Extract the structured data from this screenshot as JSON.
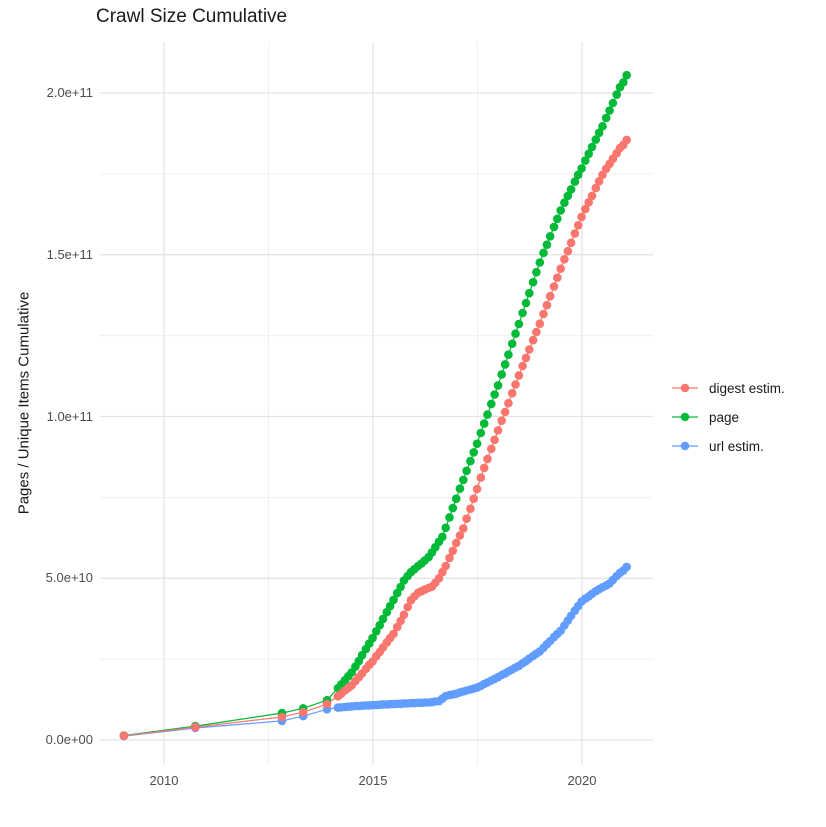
{
  "title": "Crawl Size Cumulative",
  "y_axis": {
    "title": "Pages / Unique Items Cumulative"
  },
  "x_axis": {
    "title": ""
  },
  "legend": {
    "position": "right",
    "items": [
      {
        "label": "digest estim.",
        "color": "#F8766D"
      },
      {
        "label": "page",
        "color": "#00BA38"
      },
      {
        "label": "url estim.",
        "color": "#619CFF"
      }
    ]
  },
  "colors": {
    "digest": "#F8766D",
    "page": "#00BA38",
    "url": "#619CFF",
    "grid_major": "#E3E3E3",
    "grid_minor": "#F0F0F0",
    "tick_text": "#4d4d4d",
    "title_text": "#1a1a1a",
    "background": "#ffffff"
  },
  "chart_data": {
    "type": "line",
    "marker": "point",
    "title": "Crawl Size Cumulative",
    "xlabel": "",
    "ylabel": "Pages / Unique Items Cumulative",
    "grid": true,
    "legend_position": "right",
    "value_unit": "1e10 (pages / unique items)",
    "xlim": [
      2008.45,
      2021.7
    ],
    "ylim_e10": [
      -0.85,
      21.6
    ],
    "x_ticks": {
      "values": [
        2010,
        2015,
        2020
      ],
      "labels": [
        "2010",
        "2015",
        "2020"
      ]
    },
    "x_minor_ticks": [
      2012.5,
      2017.5
    ],
    "y_ticks": {
      "values_e10": [
        0,
        5,
        10,
        15,
        20
      ],
      "labels": [
        "0.0e+00",
        "5.0e+10",
        "1.0e+11",
        "1.5e+11",
        "2.0e+11"
      ]
    },
    "y_minor_ticks_e10": [
      2.5,
      7.5,
      12.5,
      17.5
    ],
    "x": [
      2009.04,
      2010.75,
      2012.82,
      2013.33,
      2013.9,
      2014.16,
      2014.24,
      2014.33,
      2014.41,
      2014.49,
      2014.58,
      2014.66,
      2014.74,
      2014.83,
      2014.91,
      2014.99,
      2015.08,
      2015.16,
      2015.24,
      2015.33,
      2015.41,
      2015.49,
      2015.58,
      2015.66,
      2015.74,
      2015.83,
      2015.91,
      2015.99,
      2016.08,
      2016.16,
      2016.24,
      2016.33,
      2016.41,
      2016.49,
      2016.58,
      2016.66,
      2016.74,
      2016.83,
      2016.91,
      2016.99,
      2017.08,
      2017.16,
      2017.24,
      2017.33,
      2017.41,
      2017.49,
      2017.58,
      2017.66,
      2017.74,
      2017.83,
      2017.91,
      2017.99,
      2018.08,
      2018.16,
      2018.24,
      2018.33,
      2018.41,
      2018.49,
      2018.58,
      2018.66,
      2018.74,
      2018.83,
      2018.91,
      2018.99,
      2019.08,
      2019.16,
      2019.24,
      2019.33,
      2019.41,
      2019.49,
      2019.58,
      2019.66,
      2019.74,
      2019.83,
      2019.91,
      2019.99,
      2020.08,
      2020.16,
      2020.24,
      2020.33,
      2020.41,
      2020.49,
      2020.58,
      2020.66,
      2020.74,
      2020.83,
      2020.91,
      2020.99,
      2021.07
    ],
    "series": [
      {
        "name": "url estim.",
        "color": "#619CFF",
        "values_e10": [
          0.12,
          0.37,
          0.59,
          0.74,
          0.95,
          1.0,
          1.01,
          1.02,
          1.03,
          1.04,
          1.05,
          1.05,
          1.06,
          1.07,
          1.07,
          1.08,
          1.08,
          1.09,
          1.1,
          1.1,
          1.11,
          1.11,
          1.12,
          1.12,
          1.13,
          1.13,
          1.14,
          1.14,
          1.15,
          1.15,
          1.16,
          1.16,
          1.17,
          1.19,
          1.2,
          1.28,
          1.36,
          1.39,
          1.41,
          1.43,
          1.47,
          1.5,
          1.53,
          1.56,
          1.59,
          1.62,
          1.67,
          1.73,
          1.78,
          1.84,
          1.89,
          1.94,
          2.01,
          2.06,
          2.12,
          2.18,
          2.24,
          2.29,
          2.37,
          2.44,
          2.52,
          2.6,
          2.67,
          2.74,
          2.85,
          2.96,
          3.06,
          3.18,
          3.28,
          3.38,
          3.54,
          3.69,
          3.84,
          4.0,
          4.14,
          4.28,
          4.37,
          4.44,
          4.52,
          4.6,
          4.66,
          4.72,
          4.78,
          4.84,
          4.95,
          5.07,
          5.17,
          5.24,
          5.35
        ]
      },
      {
        "name": "page",
        "color": "#00BA38",
        "values_e10": [
          0.14,
          0.43,
          0.83,
          0.98,
          1.23,
          1.6,
          1.72,
          1.85,
          1.97,
          2.09,
          2.27,
          2.44,
          2.62,
          2.81,
          2.98,
          3.15,
          3.36,
          3.55,
          3.74,
          3.95,
          4.14,
          4.33,
          4.54,
          4.73,
          4.93,
          5.07,
          5.19,
          5.28,
          5.38,
          5.46,
          5.55,
          5.65,
          5.8,
          5.96,
          6.13,
          6.28,
          6.56,
          6.88,
          7.17,
          7.46,
          7.77,
          8.04,
          8.32,
          8.62,
          8.89,
          9.16,
          9.49,
          9.78,
          10.06,
          10.39,
          10.68,
          10.96,
          11.3,
          11.61,
          11.91,
          12.25,
          12.56,
          12.86,
          13.2,
          13.51,
          13.81,
          14.15,
          14.46,
          14.76,
          15.06,
          15.31,
          15.57,
          15.86,
          16.11,
          16.37,
          16.61,
          16.82,
          17.02,
          17.26,
          17.47,
          17.67,
          17.91,
          18.12,
          18.33,
          18.56,
          18.77,
          18.97,
          19.23,
          19.46,
          19.69,
          19.95,
          20.18,
          20.33,
          20.55
        ]
      },
      {
        "name": "digest estim.",
        "color": "#F8766D",
        "values_e10": [
          0.13,
          0.4,
          0.71,
          0.86,
          1.11,
          1.35,
          1.43,
          1.53,
          1.61,
          1.69,
          1.82,
          1.94,
          2.06,
          2.2,
          2.32,
          2.43,
          2.59,
          2.72,
          2.86,
          3.01,
          3.15,
          3.28,
          3.49,
          3.68,
          3.87,
          4.11,
          4.32,
          4.44,
          4.55,
          4.6,
          4.65,
          4.7,
          4.74,
          4.86,
          5.0,
          5.19,
          5.38,
          5.63,
          5.85,
          6.09,
          6.32,
          6.54,
          6.84,
          7.15,
          7.46,
          7.76,
          8.11,
          8.41,
          8.69,
          9.0,
          9.28,
          9.57,
          9.87,
          10.14,
          10.41,
          10.72,
          10.99,
          11.27,
          11.56,
          11.81,
          12.07,
          12.36,
          12.61,
          12.87,
          13.17,
          13.44,
          13.72,
          14.02,
          14.29,
          14.57,
          14.86,
          15.11,
          15.37,
          15.66,
          15.91,
          16.17,
          16.41,
          16.62,
          16.82,
          17.06,
          17.27,
          17.47,
          17.66,
          17.81,
          17.97,
          18.14,
          18.3,
          18.4,
          18.55
        ]
      }
    ]
  }
}
